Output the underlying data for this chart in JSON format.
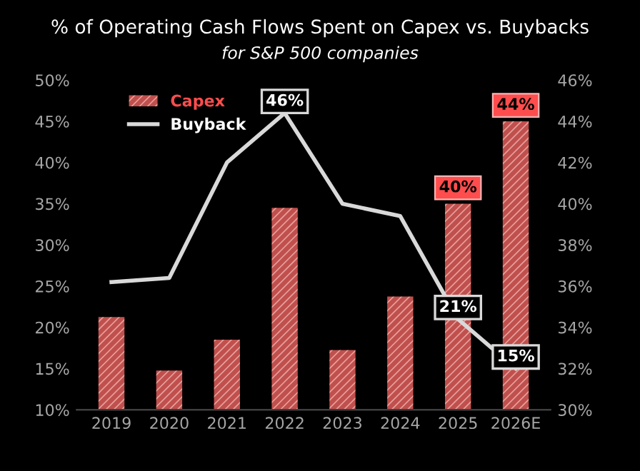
{
  "chart_data": {
    "type": "bar",
    "title": "% of Operating Cash Flows Spent on Capex vs. Buybacks",
    "subtitle": "for S&P 500 companies",
    "categories": [
      "2019",
      "2020",
      "2021",
      "2022",
      "2023",
      "2024",
      "2025",
      "2026E"
    ],
    "series": [
      {
        "name": "Capex",
        "axis": "y2",
        "color": "#c0504d",
        "values": [
          34.5,
          31.9,
          33.4,
          39.8,
          32.9,
          35.5,
          40,
          44
        ],
        "value_labels": [
          null,
          null,
          null,
          null,
          null,
          null,
          "40%",
          "44%"
        ]
      },
      {
        "name": "Buyback",
        "type": "line",
        "axis": "y",
        "color": "#d9d9d9",
        "values": [
          25.5,
          26,
          40,
          46,
          35,
          33.5,
          21,
          15
        ],
        "value_labels": [
          null,
          null,
          null,
          "46%",
          null,
          null,
          "21%",
          "15%"
        ]
      }
    ],
    "ylim": [
      10,
      50
    ],
    "yticks": [
      {
        "value": 10,
        "label": "10%"
      },
      {
        "value": 15,
        "label": "15%"
      },
      {
        "value": 20,
        "label": "20%"
      },
      {
        "value": 25,
        "label": "25%"
      },
      {
        "value": 30,
        "label": "30%"
      },
      {
        "value": 35,
        "label": "35%"
      },
      {
        "value": 40,
        "label": "40%"
      },
      {
        "value": 45,
        "label": "45%"
      },
      {
        "value": 50,
        "label": "50%"
      }
    ],
    "y2lim": [
      30,
      46
    ],
    "y2ticks": [
      {
        "value": 30,
        "label": "30%"
      },
      {
        "value": 32,
        "label": "32%"
      },
      {
        "value": 34,
        "label": "34%"
      },
      {
        "value": 36,
        "label": "36%"
      },
      {
        "value": 38,
        "label": "38%"
      },
      {
        "value": 40,
        "label": "40%"
      },
      {
        "value": 42,
        "label": "42%"
      },
      {
        "value": 44,
        "label": "44%"
      },
      {
        "value": 46,
        "label": "46%"
      }
    ],
    "grid": false,
    "legend": "top left",
    "marker": "none",
    "line_style": "solid"
  }
}
